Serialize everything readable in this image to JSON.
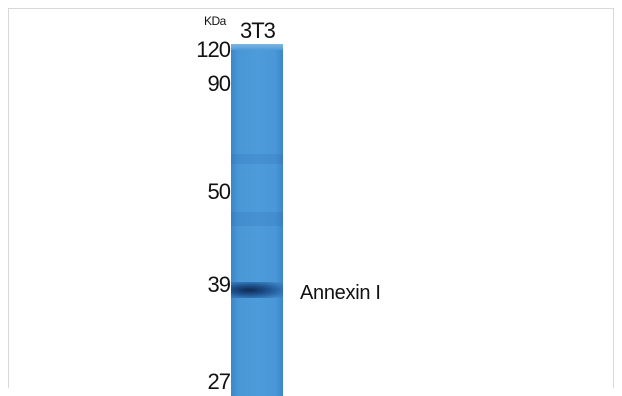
{
  "blot": {
    "unit_label": "KDa",
    "lane_label": "3T3",
    "markers": [
      "120",
      "90",
      "50",
      "39",
      "27"
    ],
    "protein_label": "Annexin I",
    "lane_color": "#4d9bda",
    "band_color": "#1c4c85"
  }
}
